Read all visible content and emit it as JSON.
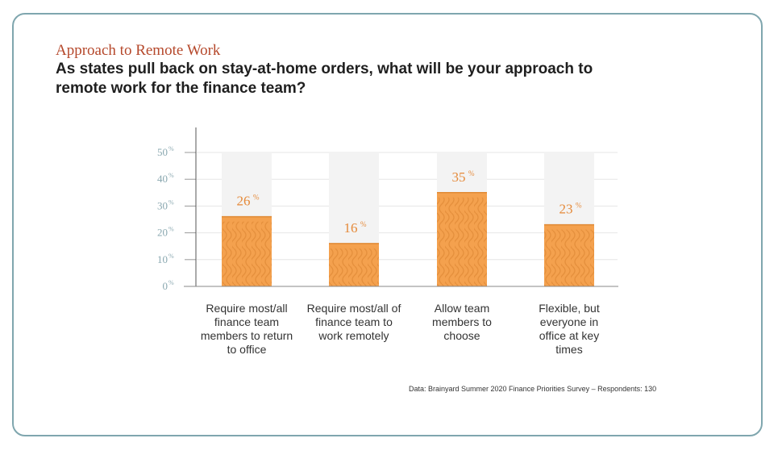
{
  "header": {
    "kicker": "Approach to Remote Work",
    "title": "As states pull back on stay-at-home orders, what will be your approach to remote work for the finance team?"
  },
  "chart_data": {
    "type": "bar",
    "categories": [
      "Require most/all finance team members to return to office",
      "Require most/all of finance team to work remotely",
      "Allow team members to choose",
      "Flexible, but everyone in office at key times"
    ],
    "values": [
      26,
      16,
      35,
      23
    ],
    "value_labels": [
      "26",
      "16",
      "35",
      "23"
    ],
    "ylim": [
      0,
      50
    ],
    "y_ticks": [
      0,
      10,
      20,
      30,
      40,
      50
    ],
    "tick_unit": "%",
    "grid": true,
    "xlabel": "",
    "ylabel": ""
  },
  "colors": {
    "bar": "#f4a14e",
    "bar_wave": "#e08a36",
    "bar_track": "#f3f3f3",
    "value_label": "#e58a3a",
    "tick_label": "#8aa8b0",
    "kicker": "#b5482b"
  },
  "footer": {
    "source": "Data: Brainyard Summer 2020 Finance Priorities Survey – Respondents: 130"
  }
}
